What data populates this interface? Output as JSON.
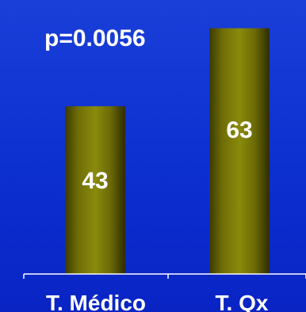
{
  "chart_data": {
    "type": "bar",
    "categories": [
      "T. Médico",
      "T. Qx"
    ],
    "values": [
      43,
      63
    ],
    "data_labels": [
      "43",
      "63"
    ],
    "annotation": "p=0.0056",
    "ylim": [
      0,
      68
    ],
    "grid": false,
    "legend": "none"
  },
  "colors": {
    "background_top": "#1a3fd8",
    "background_bottom": "#0a24c4",
    "bar_edge": "#3b3a00",
    "bar_mid": "#8a8a0c",
    "bar_highlight": "#a3a315",
    "axis": "#ffffff",
    "text": "#ffffff"
  }
}
